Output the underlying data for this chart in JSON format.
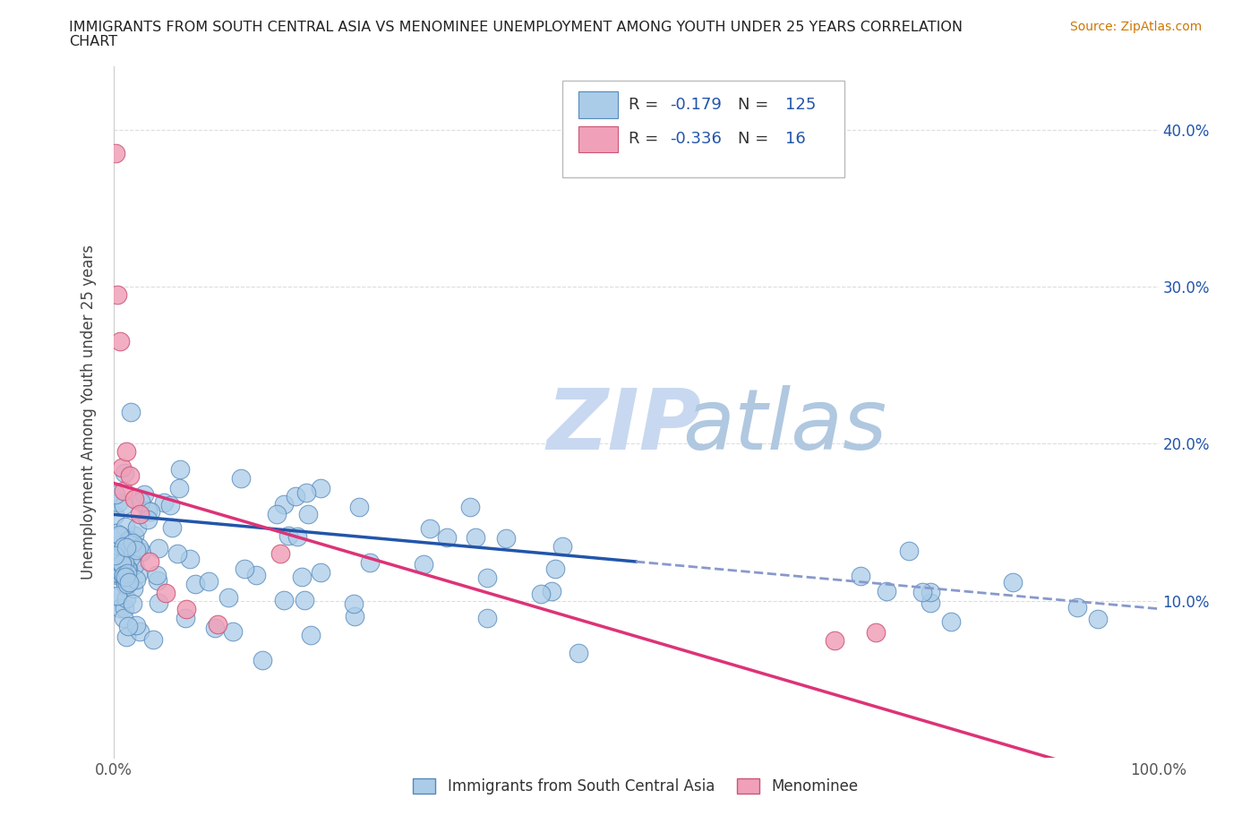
{
  "title_line1": "IMMIGRANTS FROM SOUTH CENTRAL ASIA VS MENOMINEE UNEMPLOYMENT AMONG YOUTH UNDER 25 YEARS CORRELATION",
  "title_line2": "CHART",
  "source_text": "Source: ZipAtlas.com",
  "ylabel": "Unemployment Among Youth under 25 years",
  "blue_label": "Immigrants from South Central Asia",
  "pink_label": "Menominee",
  "blue_color": "#aacce8",
  "blue_edge_color": "#5588bb",
  "pink_color": "#f0a0b8",
  "pink_edge_color": "#cc5577",
  "blue_line_color": "#2255aa",
  "pink_line_color": "#dd3377",
  "legend_blue_R": "-0.179",
  "legend_blue_N": "125",
  "legend_pink_R": "-0.336",
  "legend_pink_N": "16",
  "xlim": [
    0.0,
    1.0
  ],
  "ylim": [
    0.0,
    0.44
  ],
  "yticks": [
    0.1,
    0.2,
    0.3,
    0.4
  ],
  "ytick_labels_right": [
    "10.0%",
    "20.0%",
    "30.0%",
    "40.0%"
  ],
  "source_color": "#cc7700",
  "R_color": "#2255aa",
  "label_color": "#333333",
  "right_tick_color": "#2255aa",
  "watermark_zip_color": "#c8d8f0",
  "watermark_atlas_color": "#b0c8e0"
}
